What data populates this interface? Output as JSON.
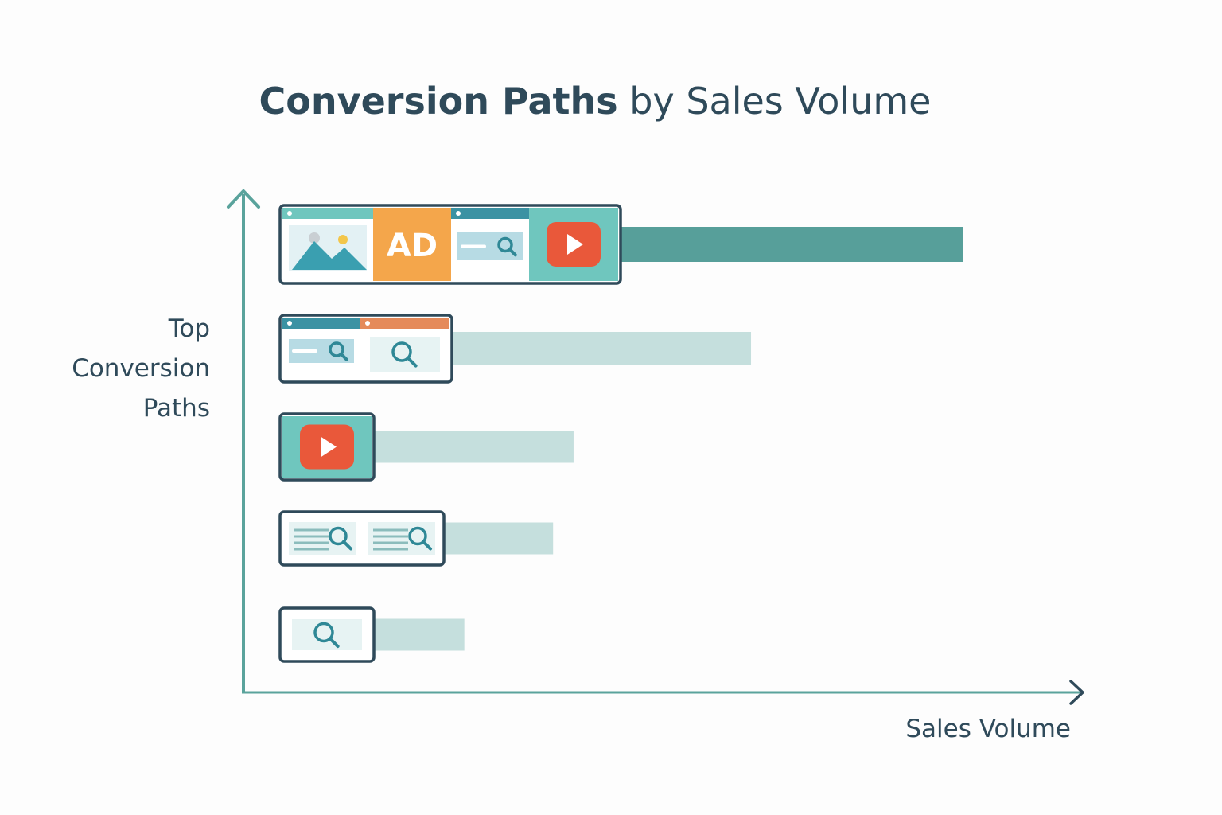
{
  "chart_data": {
    "type": "bar",
    "orientation": "horizontal",
    "title": "Conversion Paths by Sales Volume",
    "title_bold_part": "Conversion Paths",
    "title_rest": " by Sales Volume",
    "ylabel_lines": [
      "Top",
      "Conversion",
      "Paths"
    ],
    "xlabel": "Sales Volume",
    "xlim": [
      0,
      100
    ],
    "grid": false,
    "legend": "none",
    "categories": [
      "Display → Ad → Search → Video",
      "Search → Search",
      "Video",
      "Organic search → Search",
      "Search"
    ],
    "category_icons": [
      [
        "image-icon",
        "ad-icon",
        "search-bar-icon",
        "play-icon"
      ],
      [
        "search-bar-icon",
        "search-icon"
      ],
      [
        "play-icon"
      ],
      [
        "text-search-icon",
        "text-search-icon"
      ],
      [
        "search-icon"
      ]
    ],
    "values": [
      100,
      69,
      43,
      40,
      27
    ],
    "highlight_index": 0,
    "ad_text": "AD"
  },
  "colors": {
    "axis": "#5aa39c",
    "axis_arrow_x": "#2f4a5a",
    "bar_highlight": "#579f9a",
    "bar_muted": "#c5dfdd",
    "frame": "#2f4a5a",
    "teal": "#6fc6be",
    "orange": "#f4a64b",
    "red": "#e9583a",
    "text": "#2f4a5a"
  }
}
